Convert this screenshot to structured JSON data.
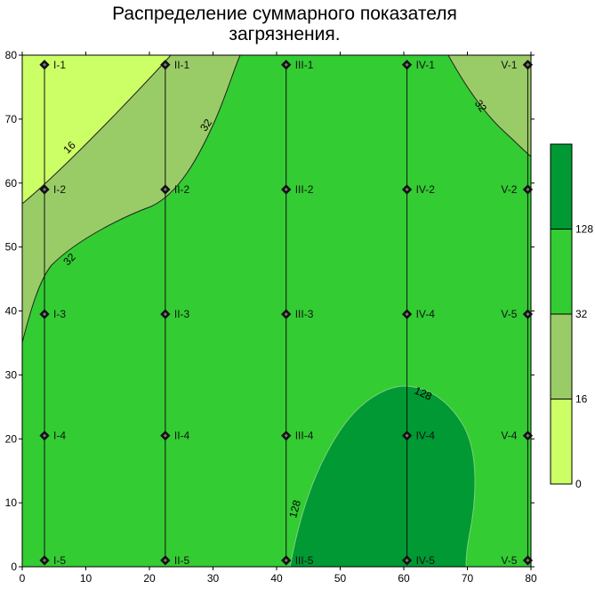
{
  "chart_data": {
    "type": "heatmap",
    "title_lines": [
      "Распределение суммарного показателя",
      "загрязнения."
    ],
    "xlim": [
      0,
      80
    ],
    "ylim": [
      0,
      80
    ],
    "x_ticks": [
      0,
      10,
      20,
      30,
      40,
      50,
      60,
      70,
      80
    ],
    "y_ticks": [
      0,
      10,
      20,
      30,
      40,
      50,
      60,
      70,
      80
    ],
    "levels": [
      0,
      16,
      32,
      128
    ],
    "colors": {
      "band_0_16": "#ccff66",
      "band_16_32": "#99cc66",
      "band_32_128": "#33cc33",
      "band_128_plus": "#009933"
    },
    "contour_labels": [
      {
        "text": "16",
        "x": 7.5,
        "y": 65.5,
        "angle": -45
      },
      {
        "text": "32",
        "x": 29,
        "y": 69,
        "angle": -55
      },
      {
        "text": "32",
        "x": 7.5,
        "y": 48,
        "angle": -45
      },
      {
        "text": "32",
        "x": 72,
        "y": 72,
        "angle": 55
      },
      {
        "text": "128",
        "x": 63,
        "y": 27,
        "angle": 25
      },
      {
        "text": "128",
        "x": 43,
        "y": 9,
        "angle": -75
      }
    ],
    "wells": [
      {
        "label": "I-1",
        "x": 3.5,
        "y": 78.5,
        "side": "right"
      },
      {
        "label": "I-2",
        "x": 3.5,
        "y": 59,
        "side": "right"
      },
      {
        "label": "I-3",
        "x": 3.5,
        "y": 39.5,
        "side": "right"
      },
      {
        "label": "I-4",
        "x": 3.5,
        "y": 20.5,
        "side": "right"
      },
      {
        "label": "I-5",
        "x": 3.5,
        "y": 1,
        "side": "right"
      },
      {
        "label": "II-1",
        "x": 22.5,
        "y": 78.5,
        "side": "right"
      },
      {
        "label": "II-2",
        "x": 22.5,
        "y": 59,
        "side": "right"
      },
      {
        "label": "II-3",
        "x": 22.5,
        "y": 39.5,
        "side": "right"
      },
      {
        "label": "II-4",
        "x": 22.5,
        "y": 20.5,
        "side": "right"
      },
      {
        "label": "II-5",
        "x": 22.5,
        "y": 1,
        "side": "right"
      },
      {
        "label": "III-1",
        "x": 41.5,
        "y": 78.5,
        "side": "right"
      },
      {
        "label": "III-2",
        "x": 41.5,
        "y": 59,
        "side": "right"
      },
      {
        "label": "III-3",
        "x": 41.5,
        "y": 39.5,
        "side": "right"
      },
      {
        "label": "III-4",
        "x": 41.5,
        "y": 20.5,
        "side": "right"
      },
      {
        "label": "III-5",
        "x": 41.5,
        "y": 1,
        "side": "right"
      },
      {
        "label": "IV-1",
        "x": 60.5,
        "y": 78.5,
        "side": "right"
      },
      {
        "label": "IV-2",
        "x": 60.5,
        "y": 59,
        "side": "right"
      },
      {
        "label": "IV-4",
        "x": 60.5,
        "y": 39.5,
        "side": "right"
      },
      {
        "label": "IV-4",
        "x": 60.5,
        "y": 20.5,
        "side": "right"
      },
      {
        "label": "IV-5",
        "x": 60.5,
        "y": 1,
        "side": "right"
      },
      {
        "label": "V-1",
        "x": 79.5,
        "y": 78.5,
        "side": "left"
      },
      {
        "label": "V-2",
        "x": 79.5,
        "y": 59,
        "side": "left"
      },
      {
        "label": "V-5",
        "x": 79.5,
        "y": 39.5,
        "side": "left"
      },
      {
        "label": "V-4",
        "x": 79.5,
        "y": 20.5,
        "side": "left"
      },
      {
        "label": "V-5",
        "x": 79.5,
        "y": 1,
        "side": "left"
      }
    ],
    "profile_lines_x": [
      3.5,
      22.5,
      41.5,
      60.5,
      79.5
    ],
    "legend": {
      "placement": "right",
      "tick_labels": [
        "0",
        "16",
        "32",
        "128"
      ]
    }
  }
}
